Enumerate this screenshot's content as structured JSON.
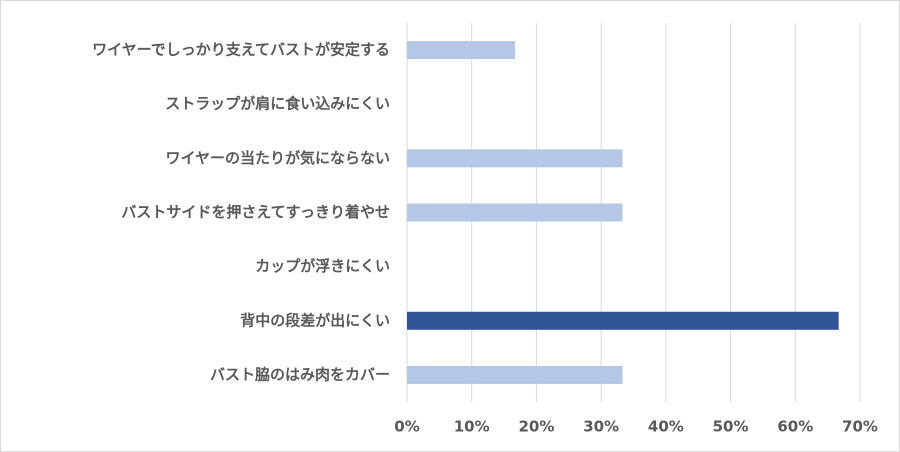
{
  "chart_data": {
    "type": "hbar",
    "categories": [
      "ワイヤーでしっかり支えてバストが安定する",
      "ストラップが肩に食い込みにくい",
      "ワイヤーの当たりが気にならない",
      "バストサイドを押さえてすっきり着やせ",
      "カップが浮きにくい",
      "背中の段差が出にくい",
      "バスト脇のはみ肉をカバー"
    ],
    "values": [
      16.7,
      0,
      33.3,
      33.3,
      0,
      66.7,
      33.3
    ],
    "colors": [
      "#b4c7e7",
      "#b4c7e7",
      "#b4c7e7",
      "#b4c7e7",
      "#b4c7e7",
      "#2f5597",
      "#b4c7e7"
    ],
    "xlim": [
      0,
      70
    ],
    "xticks": [
      {
        "value": 0,
        "label": "0%"
      },
      {
        "value": 10,
        "label": "10%"
      },
      {
        "value": 20,
        "label": "20%"
      },
      {
        "value": 30,
        "label": "30%"
      },
      {
        "value": 40,
        "label": "40%"
      },
      {
        "value": 50,
        "label": "50%"
      },
      {
        "value": 60,
        "label": "60%"
      },
      {
        "value": 70,
        "label": "70%"
      }
    ],
    "grid": true
  }
}
